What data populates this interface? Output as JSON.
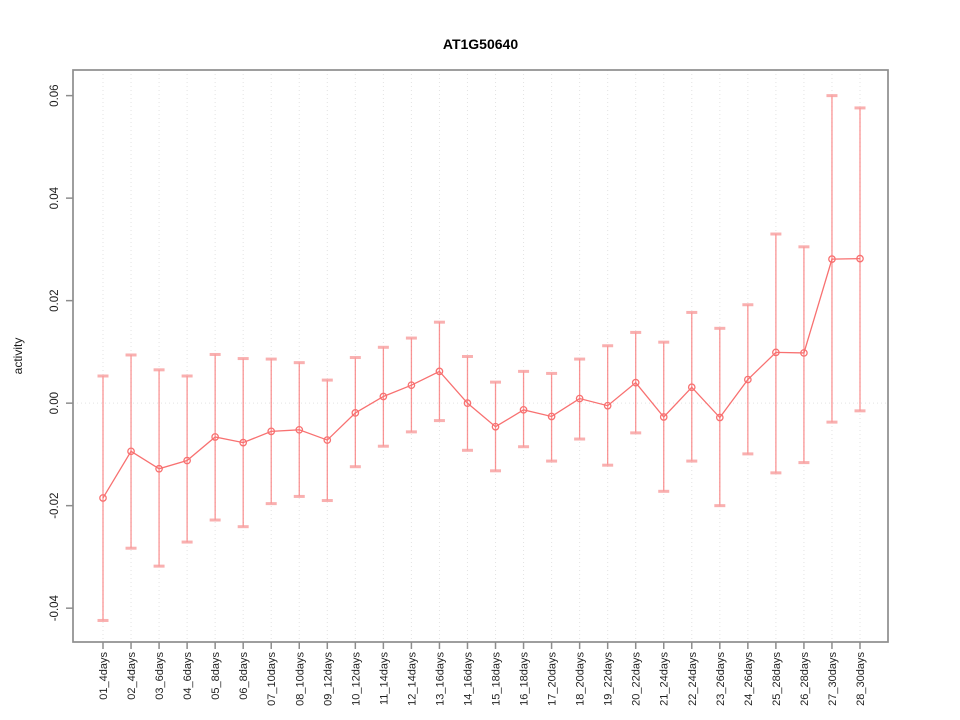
{
  "chart_data": {
    "type": "line",
    "title": "AT1G50640",
    "xlabel": "",
    "ylabel": "activity",
    "categories": [
      "01_4days",
      "02_4days",
      "03_6days",
      "04_6days",
      "05_8days",
      "06_8days",
      "07_10days",
      "08_10days",
      "09_12days",
      "10_12days",
      "11_14days",
      "12_14days",
      "13_16days",
      "14_16days",
      "15_18days",
      "16_18days",
      "17_20days",
      "18_20days",
      "19_22days",
      "20_22days",
      "21_24days",
      "22_24days",
      "23_26days",
      "24_26days",
      "25_28days",
      "26_28days",
      "27_30days",
      "28_30days"
    ],
    "series": [
      {
        "name": "activity",
        "values": [
          -0.0185,
          -0.0094,
          -0.0128,
          -0.0112,
          -0.0066,
          -0.0077,
          -0.0055,
          -0.0052,
          -0.0072,
          -0.0019,
          0.0013,
          0.0035,
          0.0062,
          0.0,
          -0.0046,
          -0.0013,
          -0.0026,
          0.0009,
          -0.0005,
          0.004,
          -0.0027,
          0.0031,
          -0.0028,
          0.0046,
          0.0099,
          0.0098,
          0.0281,
          0.0282
        ],
        "error_high": [
          0.0053,
          0.0094,
          0.0065,
          0.0053,
          0.0095,
          0.0087,
          0.0086,
          0.0079,
          0.0045,
          0.0089,
          0.0109,
          0.0127,
          0.0158,
          0.0091,
          0.0041,
          0.0062,
          0.0058,
          0.0086,
          0.0112,
          0.0138,
          0.0119,
          0.0177,
          0.0146,
          0.0192,
          0.033,
          0.0305,
          0.06,
          0.0576
        ],
        "error_low": [
          -0.0424,
          -0.0283,
          -0.0318,
          -0.0271,
          -0.0228,
          -0.0241,
          -0.0196,
          -0.0182,
          -0.019,
          -0.0124,
          -0.0084,
          -0.0056,
          -0.0034,
          -0.0092,
          -0.0132,
          -0.0085,
          -0.0113,
          -0.007,
          -0.0121,
          -0.0058,
          -0.0172,
          -0.0113,
          -0.02,
          -0.0099,
          -0.0136,
          -0.0116,
          -0.0037,
          -0.0015
        ]
      }
    ],
    "ylim": [
      -0.0466,
      0.065
    ],
    "yticks": [
      0.06,
      0.04,
      0.02,
      0.0,
      -0.02,
      -0.04
    ],
    "ytick_labels": [
      "0.06",
      "0.04",
      "0.02",
      "0.00",
      "-0.02",
      "-0.04"
    ],
    "legend": "none",
    "grid": "dotted vertical line at every category; dotted horizontal line at y=0",
    "marker": "open-circle",
    "colors": {
      "series": "#f87171",
      "error_cap": "#f89c9c",
      "axis": "#8d8d8d",
      "gridline": "#e3e3e3",
      "text": "#1f1f1f"
    }
  }
}
